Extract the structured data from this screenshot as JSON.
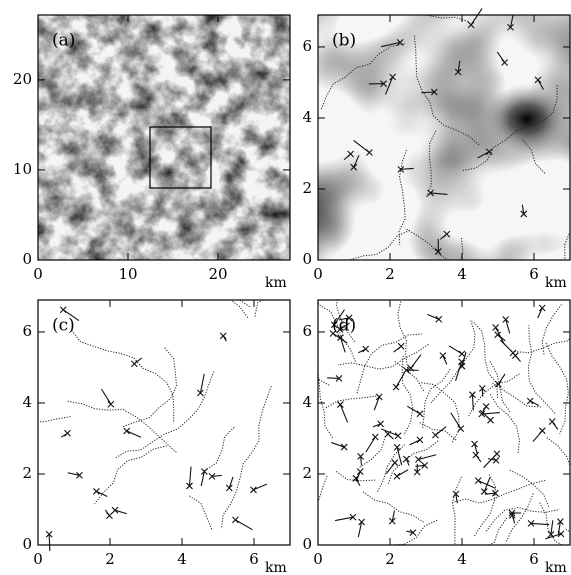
{
  "panels": [
    {
      "label": "(a)",
      "unit": "km",
      "xlim": [
        0,
        28
      ],
      "ylim": [
        0,
        27.2
      ],
      "xticks": [
        0,
        10,
        20
      ],
      "yticks": [
        0,
        10,
        20
      ]
    },
    {
      "label": "(b)",
      "unit": "km",
      "xlim": [
        0,
        7
      ],
      "ylim": [
        0,
        6.9
      ],
      "xticks": [
        0,
        2,
        4,
        6
      ],
      "yticks": [
        0,
        2,
        4,
        6
      ]
    },
    {
      "label": "(c)",
      "unit": "km",
      "xlim": [
        0,
        7
      ],
      "ylim": [
        0,
        6.9
      ],
      "xticks": [
        0,
        2,
        4,
        6
      ],
      "yticks": [
        0,
        2,
        4,
        6
      ]
    },
    {
      "label": "(d)",
      "unit": "km",
      "xlim": [
        0,
        7
      ],
      "ylim": [
        0,
        6.9
      ],
      "xticks": [
        0,
        2,
        4,
        6
      ],
      "yticks": [
        0,
        2,
        4,
        6
      ]
    }
  ]
}
